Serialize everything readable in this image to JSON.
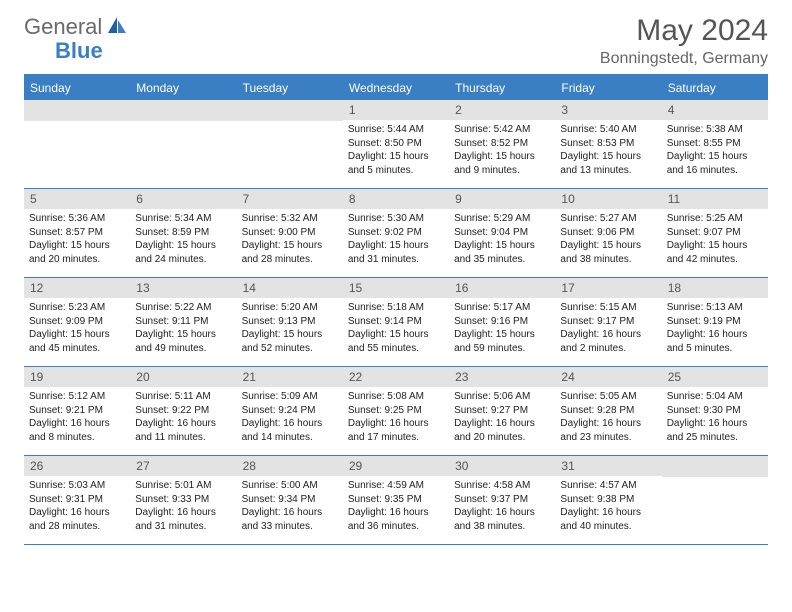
{
  "logo": {
    "general": "General",
    "blue": "Blue"
  },
  "title": "May 2024",
  "location": "Bonningstedt, Germany",
  "colors": {
    "accent": "#3a7fc4",
    "gray_band": "#e3e3e3",
    "logo_gray": "#6a6a6a",
    "text": "#333333",
    "title_gray": "#555555"
  },
  "day_names": [
    "Sunday",
    "Monday",
    "Tuesday",
    "Wednesday",
    "Thursday",
    "Friday",
    "Saturday"
  ],
  "weeks": [
    [
      null,
      null,
      null,
      {
        "n": "1",
        "sunrise": "5:44 AM",
        "sunset": "8:50 PM",
        "daylight": "15 hours and 5 minutes."
      },
      {
        "n": "2",
        "sunrise": "5:42 AM",
        "sunset": "8:52 PM",
        "daylight": "15 hours and 9 minutes."
      },
      {
        "n": "3",
        "sunrise": "5:40 AM",
        "sunset": "8:53 PM",
        "daylight": "15 hours and 13 minutes."
      },
      {
        "n": "4",
        "sunrise": "5:38 AM",
        "sunset": "8:55 PM",
        "daylight": "15 hours and 16 minutes."
      }
    ],
    [
      {
        "n": "5",
        "sunrise": "5:36 AM",
        "sunset": "8:57 PM",
        "daylight": "15 hours and 20 minutes."
      },
      {
        "n": "6",
        "sunrise": "5:34 AM",
        "sunset": "8:59 PM",
        "daylight": "15 hours and 24 minutes."
      },
      {
        "n": "7",
        "sunrise": "5:32 AM",
        "sunset": "9:00 PM",
        "daylight": "15 hours and 28 minutes."
      },
      {
        "n": "8",
        "sunrise": "5:30 AM",
        "sunset": "9:02 PM",
        "daylight": "15 hours and 31 minutes."
      },
      {
        "n": "9",
        "sunrise": "5:29 AM",
        "sunset": "9:04 PM",
        "daylight": "15 hours and 35 minutes."
      },
      {
        "n": "10",
        "sunrise": "5:27 AM",
        "sunset": "9:06 PM",
        "daylight": "15 hours and 38 minutes."
      },
      {
        "n": "11",
        "sunrise": "5:25 AM",
        "sunset": "9:07 PM",
        "daylight": "15 hours and 42 minutes."
      }
    ],
    [
      {
        "n": "12",
        "sunrise": "5:23 AM",
        "sunset": "9:09 PM",
        "daylight": "15 hours and 45 minutes."
      },
      {
        "n": "13",
        "sunrise": "5:22 AM",
        "sunset": "9:11 PM",
        "daylight": "15 hours and 49 minutes."
      },
      {
        "n": "14",
        "sunrise": "5:20 AM",
        "sunset": "9:13 PM",
        "daylight": "15 hours and 52 minutes."
      },
      {
        "n": "15",
        "sunrise": "5:18 AM",
        "sunset": "9:14 PM",
        "daylight": "15 hours and 55 minutes."
      },
      {
        "n": "16",
        "sunrise": "5:17 AM",
        "sunset": "9:16 PM",
        "daylight": "15 hours and 59 minutes."
      },
      {
        "n": "17",
        "sunrise": "5:15 AM",
        "sunset": "9:17 PM",
        "daylight": "16 hours and 2 minutes."
      },
      {
        "n": "18",
        "sunrise": "5:13 AM",
        "sunset": "9:19 PM",
        "daylight": "16 hours and 5 minutes."
      }
    ],
    [
      {
        "n": "19",
        "sunrise": "5:12 AM",
        "sunset": "9:21 PM",
        "daylight": "16 hours and 8 minutes."
      },
      {
        "n": "20",
        "sunrise": "5:11 AM",
        "sunset": "9:22 PM",
        "daylight": "16 hours and 11 minutes."
      },
      {
        "n": "21",
        "sunrise": "5:09 AM",
        "sunset": "9:24 PM",
        "daylight": "16 hours and 14 minutes."
      },
      {
        "n": "22",
        "sunrise": "5:08 AM",
        "sunset": "9:25 PM",
        "daylight": "16 hours and 17 minutes."
      },
      {
        "n": "23",
        "sunrise": "5:06 AM",
        "sunset": "9:27 PM",
        "daylight": "16 hours and 20 minutes."
      },
      {
        "n": "24",
        "sunrise": "5:05 AM",
        "sunset": "9:28 PM",
        "daylight": "16 hours and 23 minutes."
      },
      {
        "n": "25",
        "sunrise": "5:04 AM",
        "sunset": "9:30 PM",
        "daylight": "16 hours and 25 minutes."
      }
    ],
    [
      {
        "n": "26",
        "sunrise": "5:03 AM",
        "sunset": "9:31 PM",
        "daylight": "16 hours and 28 minutes."
      },
      {
        "n": "27",
        "sunrise": "5:01 AM",
        "sunset": "9:33 PM",
        "daylight": "16 hours and 31 minutes."
      },
      {
        "n": "28",
        "sunrise": "5:00 AM",
        "sunset": "9:34 PM",
        "daylight": "16 hours and 33 minutes."
      },
      {
        "n": "29",
        "sunrise": "4:59 AM",
        "sunset": "9:35 PM",
        "daylight": "16 hours and 36 minutes."
      },
      {
        "n": "30",
        "sunrise": "4:58 AM",
        "sunset": "9:37 PM",
        "daylight": "16 hours and 38 minutes."
      },
      {
        "n": "31",
        "sunrise": "4:57 AM",
        "sunset": "9:38 PM",
        "daylight": "16 hours and 40 minutes."
      },
      null
    ]
  ],
  "labels": {
    "sunrise": "Sunrise:",
    "sunset": "Sunset:",
    "daylight": "Daylight:"
  }
}
